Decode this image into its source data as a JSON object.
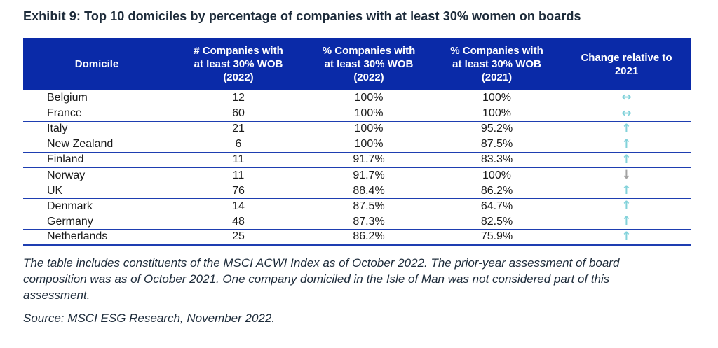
{
  "title": "Exhibit 9: Top 10 domiciles by percentage of companies with at least 30% women on boards",
  "table": {
    "headers": [
      "Domicile",
      "# Companies with at least 30% WOB (2022)",
      "% Companies with at least 30% WOB (2022)",
      "% Companies with at least 30% WOB (2021)",
      "Change relative to 2021"
    ],
    "rows": [
      {
        "domicile": "Belgium",
        "count_2022": "12",
        "pct_2022": "100%",
        "pct_2021": "100%",
        "change": "same"
      },
      {
        "domicile": "France",
        "count_2022": "60",
        "pct_2022": "100%",
        "pct_2021": "100%",
        "change": "same"
      },
      {
        "domicile": "Italy",
        "count_2022": "21",
        "pct_2022": "100%",
        "pct_2021": "95.2%",
        "change": "up"
      },
      {
        "domicile": "New Zealand",
        "count_2022": "6",
        "pct_2022": "100%",
        "pct_2021": "87.5%",
        "change": "up"
      },
      {
        "domicile": "Finland",
        "count_2022": "11",
        "pct_2022": "91.7%",
        "pct_2021": "83.3%",
        "change": "up"
      },
      {
        "domicile": "Norway",
        "count_2022": "11",
        "pct_2022": "91.7%",
        "pct_2021": "100%",
        "change": "down"
      },
      {
        "domicile": "UK",
        "count_2022": "76",
        "pct_2022": "88.4%",
        "pct_2021": "86.2%",
        "change": "up"
      },
      {
        "domicile": "Denmark",
        "count_2022": "14",
        "pct_2022": "87.5%",
        "pct_2021": "64.7%",
        "change": "up"
      },
      {
        "domicile": "Germany",
        "count_2022": "48",
        "pct_2022": "87.3%",
        "pct_2021": "82.5%",
        "change": "up"
      },
      {
        "domicile": "Netherlands",
        "count_2022": "25",
        "pct_2022": "86.2%",
        "pct_2021": "75.9%",
        "change": "up"
      }
    ],
    "change_glyphs": {
      "up": "↑",
      "down": "↓",
      "same": "↔"
    }
  },
  "footnote": {
    "lines": [
      "The table includes constituents of the MSCI ACWI Index as of October 2022. The prior-year assessment of board",
      "composition was as of October 2021. One company domiciled in the Isle of Man was not considered part of this",
      "assessment."
    ]
  },
  "source": "Source: MSCI ESG Research, November 2022.",
  "colors": {
    "header-bg": "#0A2AA8",
    "line-blue": "#1e3eb1",
    "arrow-teal": "#82d2da",
    "arrow-gray": "#a3a3a3",
    "title-navy": "#1d2b3a",
    "cell-text": "#1a1a1a"
  }
}
